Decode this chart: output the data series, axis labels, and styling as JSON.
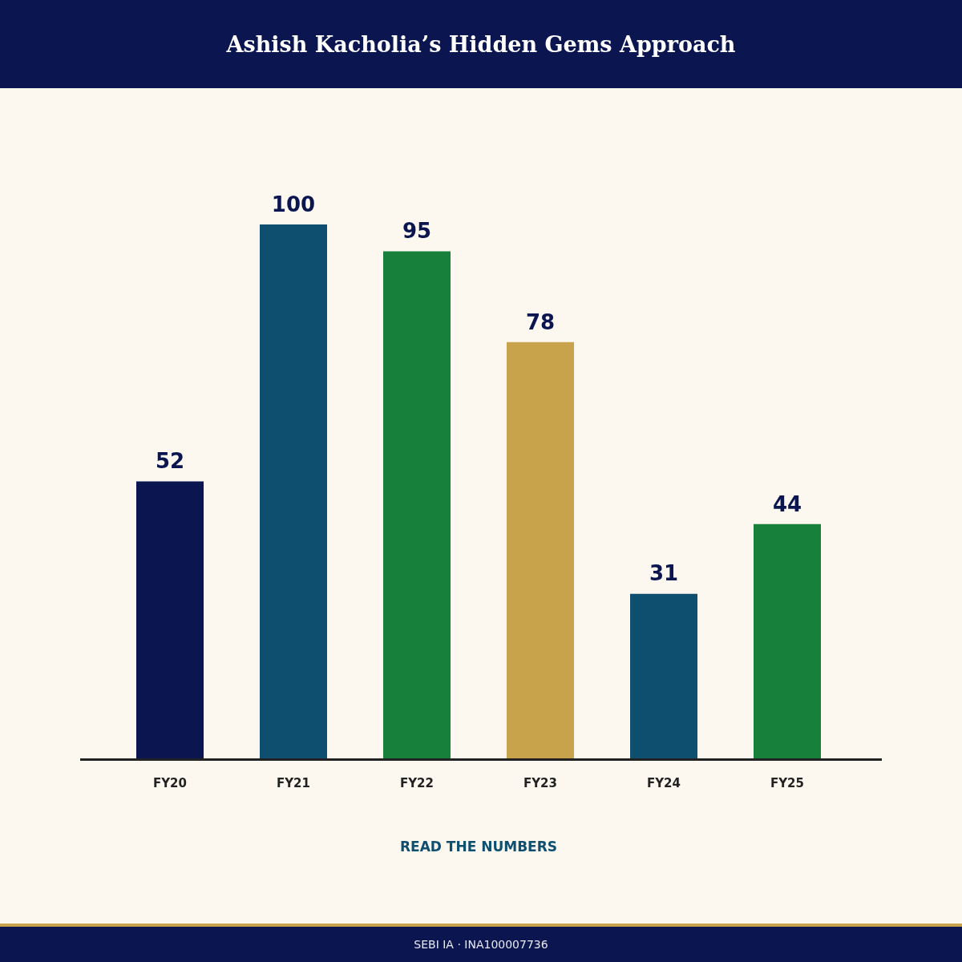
{
  "chart_data": {
    "type": "bar",
    "title": "Ashish Kacholia’s Hidden Gems Approach",
    "xlabel": "READ THE NUMBERS",
    "categories": [
      "FY20",
      "FY21",
      "FY22",
      "FY23",
      "FY24",
      "FY25"
    ],
    "values": [
      52,
      100,
      95,
      78,
      31,
      44
    ],
    "colors": [
      "#0b1650",
      "#0e4f70",
      "#17803a",
      "#c9a34c",
      "#0e4f70",
      "#17803a"
    ],
    "data_labels": true,
    "annotations": [
      "SEBI IA · INA100007736"
    ]
  }
}
